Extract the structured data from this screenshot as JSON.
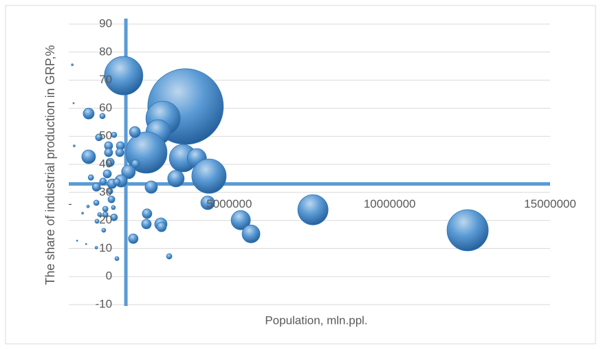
{
  "chart_data": {
    "type": "bubble",
    "x_title": "Population, mln.ppl.",
    "y_title": "The share of industrial production in GRP,%",
    "x": [
      1710000,
      3640000,
      2940000,
      2790000,
      2420000,
      3560000,
      3990000,
      4370000,
      3340000,
      2570000,
      1860000,
      2080000,
      2060000,
      1630000,
      1350000,
      4330000,
      7610000,
      5360000,
      5680000,
      12430000,
      2440000,
      2420000,
      2870000,
      2890000,
      2010000,
      3130000,
      620000,
      620000,
      1050000,
      940000,
      1240000,
      1240000,
      1610000,
      1590000,
      1290000,
      1200000,
      1070000,
      860000,
      690000,
      1290000,
      1330000,
      860000,
      1140000,
      1410000,
      1140000,
      1390000,
      1090000,
      880000,
      1500000,
      600000,
      430000,
      860000,
      170000,
      110000,
      150000,
      540000,
      260000,
      1410000,
      960000,
      1500000
    ],
    "y": [
      71.6,
      60.6,
      56.4,
      51.5,
      44.2,
      42.2,
      42.2,
      35.8,
      34.9,
      31.9,
      37.3,
      40.2,
      51.5,
      34.1,
      33.1,
      26.3,
      23.8,
      20.1,
      15.2,
      16.5,
      22.4,
      18.7,
      18.7,
      17.7,
      13.5,
      7.2,
      58.1,
      42.7,
      57.2,
      49.6,
      46.6,
      44.2,
      46.6,
      44.2,
      40.7,
      36.6,
      33.9,
      31.9,
      35.3,
      30.4,
      27.5,
      26.3,
      24.1,
      21.1,
      22.1,
      24.6,
      16.5,
      19.7,
      6.4,
      25.0,
      22.6,
      10.3,
      46.6,
      75.5,
      61.8,
      11.6,
      12.8,
      50.5,
      22.1,
      33.7
    ],
    "sizes": [
      784,
      3025,
      625,
      324,
      900,
      400,
      196,
      625,
      144,
      81,
      100,
      36,
      64,
      81,
      49,
      100,
      484,
      196,
      169,
      900,
      49,
      49,
      81,
      49,
      49,
      16,
      64,
      100,
      16,
      25,
      36,
      36,
      36,
      36,
      36,
      36,
      25,
      36,
      16,
      16,
      25,
      16,
      16,
      25,
      16,
      9,
      9,
      9,
      9,
      4,
      2,
      4,
      2,
      2,
      1,
      1,
      1,
      16,
      9,
      25
    ],
    "color": "#2e75b6",
    "xlim": [
      0,
      15000000
    ],
    "xticks": [
      {
        "value": 0,
        "label": "-"
      },
      5000000,
      10000000,
      15000000
    ],
    "ylim": [
      -10,
      90
    ],
    "yticks": [
      -10,
      0,
      10,
      20,
      30,
      40,
      50,
      60,
      70,
      80,
      90
    ],
    "x_axis_crosses_at": 33,
    "y_axis_crosses_at": 1780000,
    "axis_color": "#5b9bd5",
    "grid": true
  }
}
